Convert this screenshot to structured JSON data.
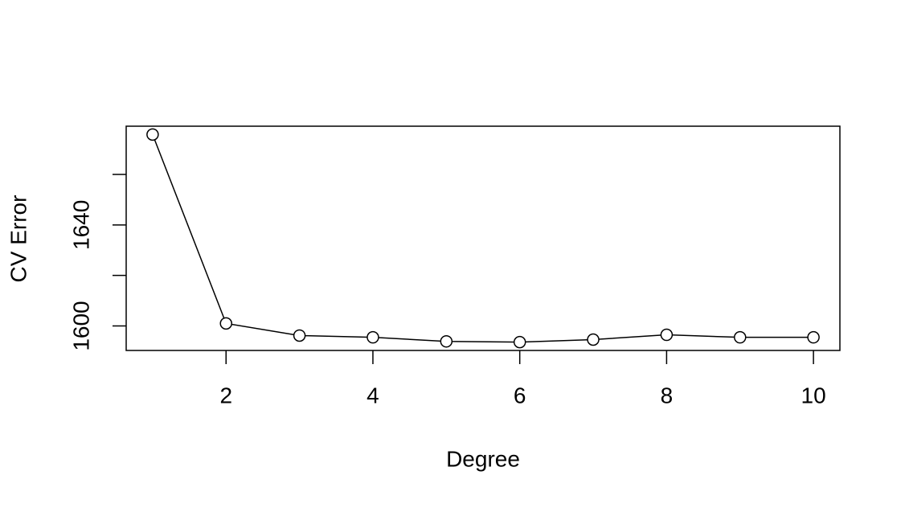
{
  "chart_data": {
    "type": "line",
    "xlabel": "Degree",
    "ylabel": "CV Error",
    "x": [
      1,
      2,
      3,
      4,
      5,
      6,
      7,
      8,
      9,
      10
    ],
    "values": [
      1675.8,
      1601.0,
      1596.2,
      1595.5,
      1593.9,
      1593.6,
      1594.6,
      1596.5,
      1595.5,
      1595.5
    ],
    "color": "#000000",
    "marker": "open-circle",
    "xlim": [
      0.64,
      10.36
    ],
    "xticks": [
      2,
      4,
      6,
      8,
      10
    ],
    "ylim": [
      1590.3,
      1679.1
    ],
    "yticks": [
      1600,
      {
        "value": 1620,
        "label": null
      },
      1640,
      {
        "value": 1660,
        "label": null
      }
    ]
  }
}
